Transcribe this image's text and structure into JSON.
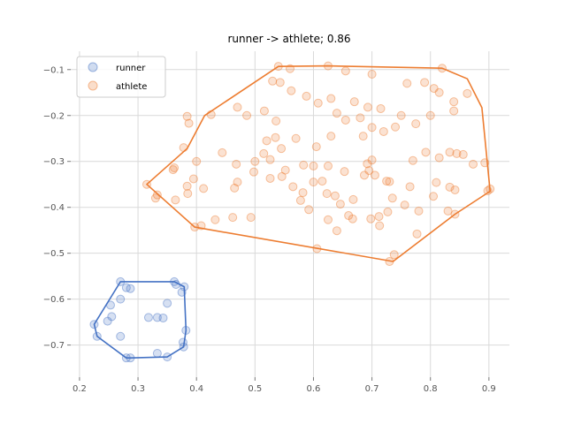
{
  "chart_data": {
    "type": "scatter",
    "title": "runner -> athlete; 0.86",
    "xlabel": "",
    "ylabel": "",
    "xlim": [
      0.185,
      0.935
    ],
    "ylim": [
      -0.77,
      -0.06
    ],
    "x_ticks": [
      0.2,
      0.3,
      0.4,
      0.5,
      0.6,
      0.7,
      0.8,
      0.9
    ],
    "y_ticks": [
      -0.1,
      -0.2,
      -0.3,
      -0.4,
      -0.5,
      -0.6,
      -0.7
    ],
    "x_tick_labels": [
      "0.2",
      "0.3",
      "0.4",
      "0.5",
      "0.6",
      "0.7",
      "0.8",
      "0.9"
    ],
    "y_tick_labels": [
      "−0.1",
      "−0.2",
      "−0.3",
      "−0.4",
      "−0.5",
      "−0.6",
      "−0.7"
    ],
    "grid": true,
    "legend_position": "top-left",
    "series": [
      {
        "name": "runner",
        "color": "#4472c4",
        "points": [
          [
            0.27,
            -0.562
          ],
          [
            0.28,
            -0.575
          ],
          [
            0.287,
            -0.577
          ],
          [
            0.362,
            -0.562
          ],
          [
            0.365,
            -0.568
          ],
          [
            0.379,
            -0.573
          ],
          [
            0.375,
            -0.585
          ],
          [
            0.35,
            -0.609
          ],
          [
            0.27,
            -0.6
          ],
          [
            0.253,
            -0.613
          ],
          [
            0.225,
            -0.655
          ],
          [
            0.248,
            -0.648
          ],
          [
            0.255,
            -0.638
          ],
          [
            0.318,
            -0.64
          ],
          [
            0.333,
            -0.64
          ],
          [
            0.343,
            -0.641
          ],
          [
            0.23,
            -0.681
          ],
          [
            0.27,
            -0.681
          ],
          [
            0.382,
            -0.668
          ],
          [
            0.377,
            -0.694
          ],
          [
            0.378,
            -0.704
          ],
          [
            0.333,
            -0.718
          ],
          [
            0.35,
            -0.726
          ],
          [
            0.28,
            -0.728
          ],
          [
            0.287,
            -0.728
          ]
        ],
        "hull": [
          [
            0.27,
            -0.562
          ],
          [
            0.362,
            -0.562
          ],
          [
            0.379,
            -0.573
          ],
          [
            0.382,
            -0.668
          ],
          [
            0.378,
            -0.704
          ],
          [
            0.35,
            -0.726
          ],
          [
            0.287,
            -0.728
          ],
          [
            0.28,
            -0.728
          ],
          [
            0.23,
            -0.681
          ],
          [
            0.225,
            -0.655
          ]
        ]
      },
      {
        "name": "athlete",
        "color": "#ed7d31",
        "points": [
          [
            0.54,
            -0.093
          ],
          [
            0.56,
            -0.098
          ],
          [
            0.625,
            -0.092
          ],
          [
            0.655,
            -0.103
          ],
          [
            0.7,
            -0.11
          ],
          [
            0.82,
            -0.097
          ],
          [
            0.76,
            -0.13
          ],
          [
            0.79,
            -0.128
          ],
          [
            0.806,
            -0.141
          ],
          [
            0.815,
            -0.15
          ],
          [
            0.863,
            -0.152
          ],
          [
            0.84,
            -0.17
          ],
          [
            0.84,
            -0.19
          ],
          [
            0.8,
            -0.2
          ],
          [
            0.775,
            -0.218
          ],
          [
            0.75,
            -0.2
          ],
          [
            0.715,
            -0.185
          ],
          [
            0.693,
            -0.182
          ],
          [
            0.67,
            -0.17
          ],
          [
            0.63,
            -0.163
          ],
          [
            0.608,
            -0.173
          ],
          [
            0.588,
            -0.158
          ],
          [
            0.562,
            -0.146
          ],
          [
            0.543,
            -0.128
          ],
          [
            0.53,
            -0.125
          ],
          [
            0.516,
            -0.19
          ],
          [
            0.536,
            -0.212
          ],
          [
            0.486,
            -0.2
          ],
          [
            0.47,
            -0.182
          ],
          [
            0.425,
            -0.198
          ],
          [
            0.384,
            -0.202
          ],
          [
            0.387,
            -0.217
          ],
          [
            0.64,
            -0.195
          ],
          [
            0.655,
            -0.21
          ],
          [
            0.68,
            -0.205
          ],
          [
            0.7,
            -0.226
          ],
          [
            0.74,
            -0.225
          ],
          [
            0.72,
            -0.235
          ],
          [
            0.685,
            -0.245
          ],
          [
            0.63,
            -0.245
          ],
          [
            0.605,
            -0.268
          ],
          [
            0.57,
            -0.25
          ],
          [
            0.535,
            -0.248
          ],
          [
            0.52,
            -0.255
          ],
          [
            0.515,
            -0.283
          ],
          [
            0.545,
            -0.272
          ],
          [
            0.526,
            -0.296
          ],
          [
            0.5,
            -0.3
          ],
          [
            0.468,
            -0.306
          ],
          [
            0.444,
            -0.281
          ],
          [
            0.378,
            -0.27
          ],
          [
            0.362,
            -0.314
          ],
          [
            0.36,
            -0.318
          ],
          [
            0.4,
            -0.3
          ],
          [
            0.395,
            -0.338
          ],
          [
            0.364,
            -0.384
          ],
          [
            0.315,
            -0.35
          ],
          [
            0.333,
            -0.373
          ],
          [
            0.33,
            -0.38
          ],
          [
            0.385,
            -0.37
          ],
          [
            0.384,
            -0.354
          ],
          [
            0.412,
            -0.359
          ],
          [
            0.465,
            -0.358
          ],
          [
            0.47,
            -0.345
          ],
          [
            0.498,
            -0.323
          ],
          [
            0.526,
            -0.337
          ],
          [
            0.552,
            -0.319
          ],
          [
            0.546,
            -0.333
          ],
          [
            0.565,
            -0.355
          ],
          [
            0.582,
            -0.368
          ],
          [
            0.578,
            -0.385
          ],
          [
            0.592,
            -0.405
          ],
          [
            0.6,
            -0.345
          ],
          [
            0.6,
            -0.31
          ],
          [
            0.615,
            -0.343
          ],
          [
            0.623,
            -0.37
          ],
          [
            0.637,
            -0.375
          ],
          [
            0.646,
            -0.393
          ],
          [
            0.668,
            -0.383
          ],
          [
            0.66,
            -0.418
          ],
          [
            0.667,
            -0.425
          ],
          [
            0.625,
            -0.427
          ],
          [
            0.64,
            -0.451
          ],
          [
            0.606,
            -0.49
          ],
          [
            0.493,
            -0.422
          ],
          [
            0.462,
            -0.422
          ],
          [
            0.432,
            -0.427
          ],
          [
            0.408,
            -0.44
          ],
          [
            0.397,
            -0.443
          ],
          [
            0.698,
            -0.425
          ],
          [
            0.713,
            -0.44
          ],
          [
            0.712,
            -0.42
          ],
          [
            0.727,
            -0.41
          ],
          [
            0.756,
            -0.395
          ],
          [
            0.735,
            -0.38
          ],
          [
            0.765,
            -0.355
          ],
          [
            0.725,
            -0.343
          ],
          [
            0.73,
            -0.344
          ],
          [
            0.705,
            -0.33
          ],
          [
            0.692,
            -0.305
          ],
          [
            0.7,
            -0.297
          ],
          [
            0.695,
            -0.32
          ],
          [
            0.687,
            -0.33
          ],
          [
            0.653,
            -0.322
          ],
          [
            0.625,
            -0.31
          ],
          [
            0.583,
            -0.308
          ],
          [
            0.77,
            -0.298
          ],
          [
            0.792,
            -0.28
          ],
          [
            0.815,
            -0.292
          ],
          [
            0.833,
            -0.28
          ],
          [
            0.845,
            -0.283
          ],
          [
            0.856,
            -0.285
          ],
          [
            0.873,
            -0.306
          ],
          [
            0.893,
            -0.303
          ],
          [
            0.898,
            -0.364
          ],
          [
            0.902,
            -0.36
          ],
          [
            0.81,
            -0.346
          ],
          [
            0.833,
            -0.356
          ],
          [
            0.842,
            -0.362
          ],
          [
            0.805,
            -0.376
          ],
          [
            0.842,
            -0.415
          ],
          [
            0.83,
            -0.408
          ],
          [
            0.73,
            -0.518
          ],
          [
            0.78,
            -0.408
          ],
          [
            0.777,
            -0.458
          ],
          [
            0.738,
            -0.503
          ]
        ],
        "hull": [
          [
            0.54,
            -0.093
          ],
          [
            0.625,
            -0.092
          ],
          [
            0.82,
            -0.097
          ],
          [
            0.863,
            -0.12
          ],
          [
            0.888,
            -0.183
          ],
          [
            0.902,
            -0.365
          ],
          [
            0.842,
            -0.415
          ],
          [
            0.736,
            -0.518
          ],
          [
            0.397,
            -0.443
          ],
          [
            0.315,
            -0.35
          ],
          [
            0.384,
            -0.272
          ],
          [
            0.414,
            -0.2
          ]
        ]
      }
    ]
  }
}
